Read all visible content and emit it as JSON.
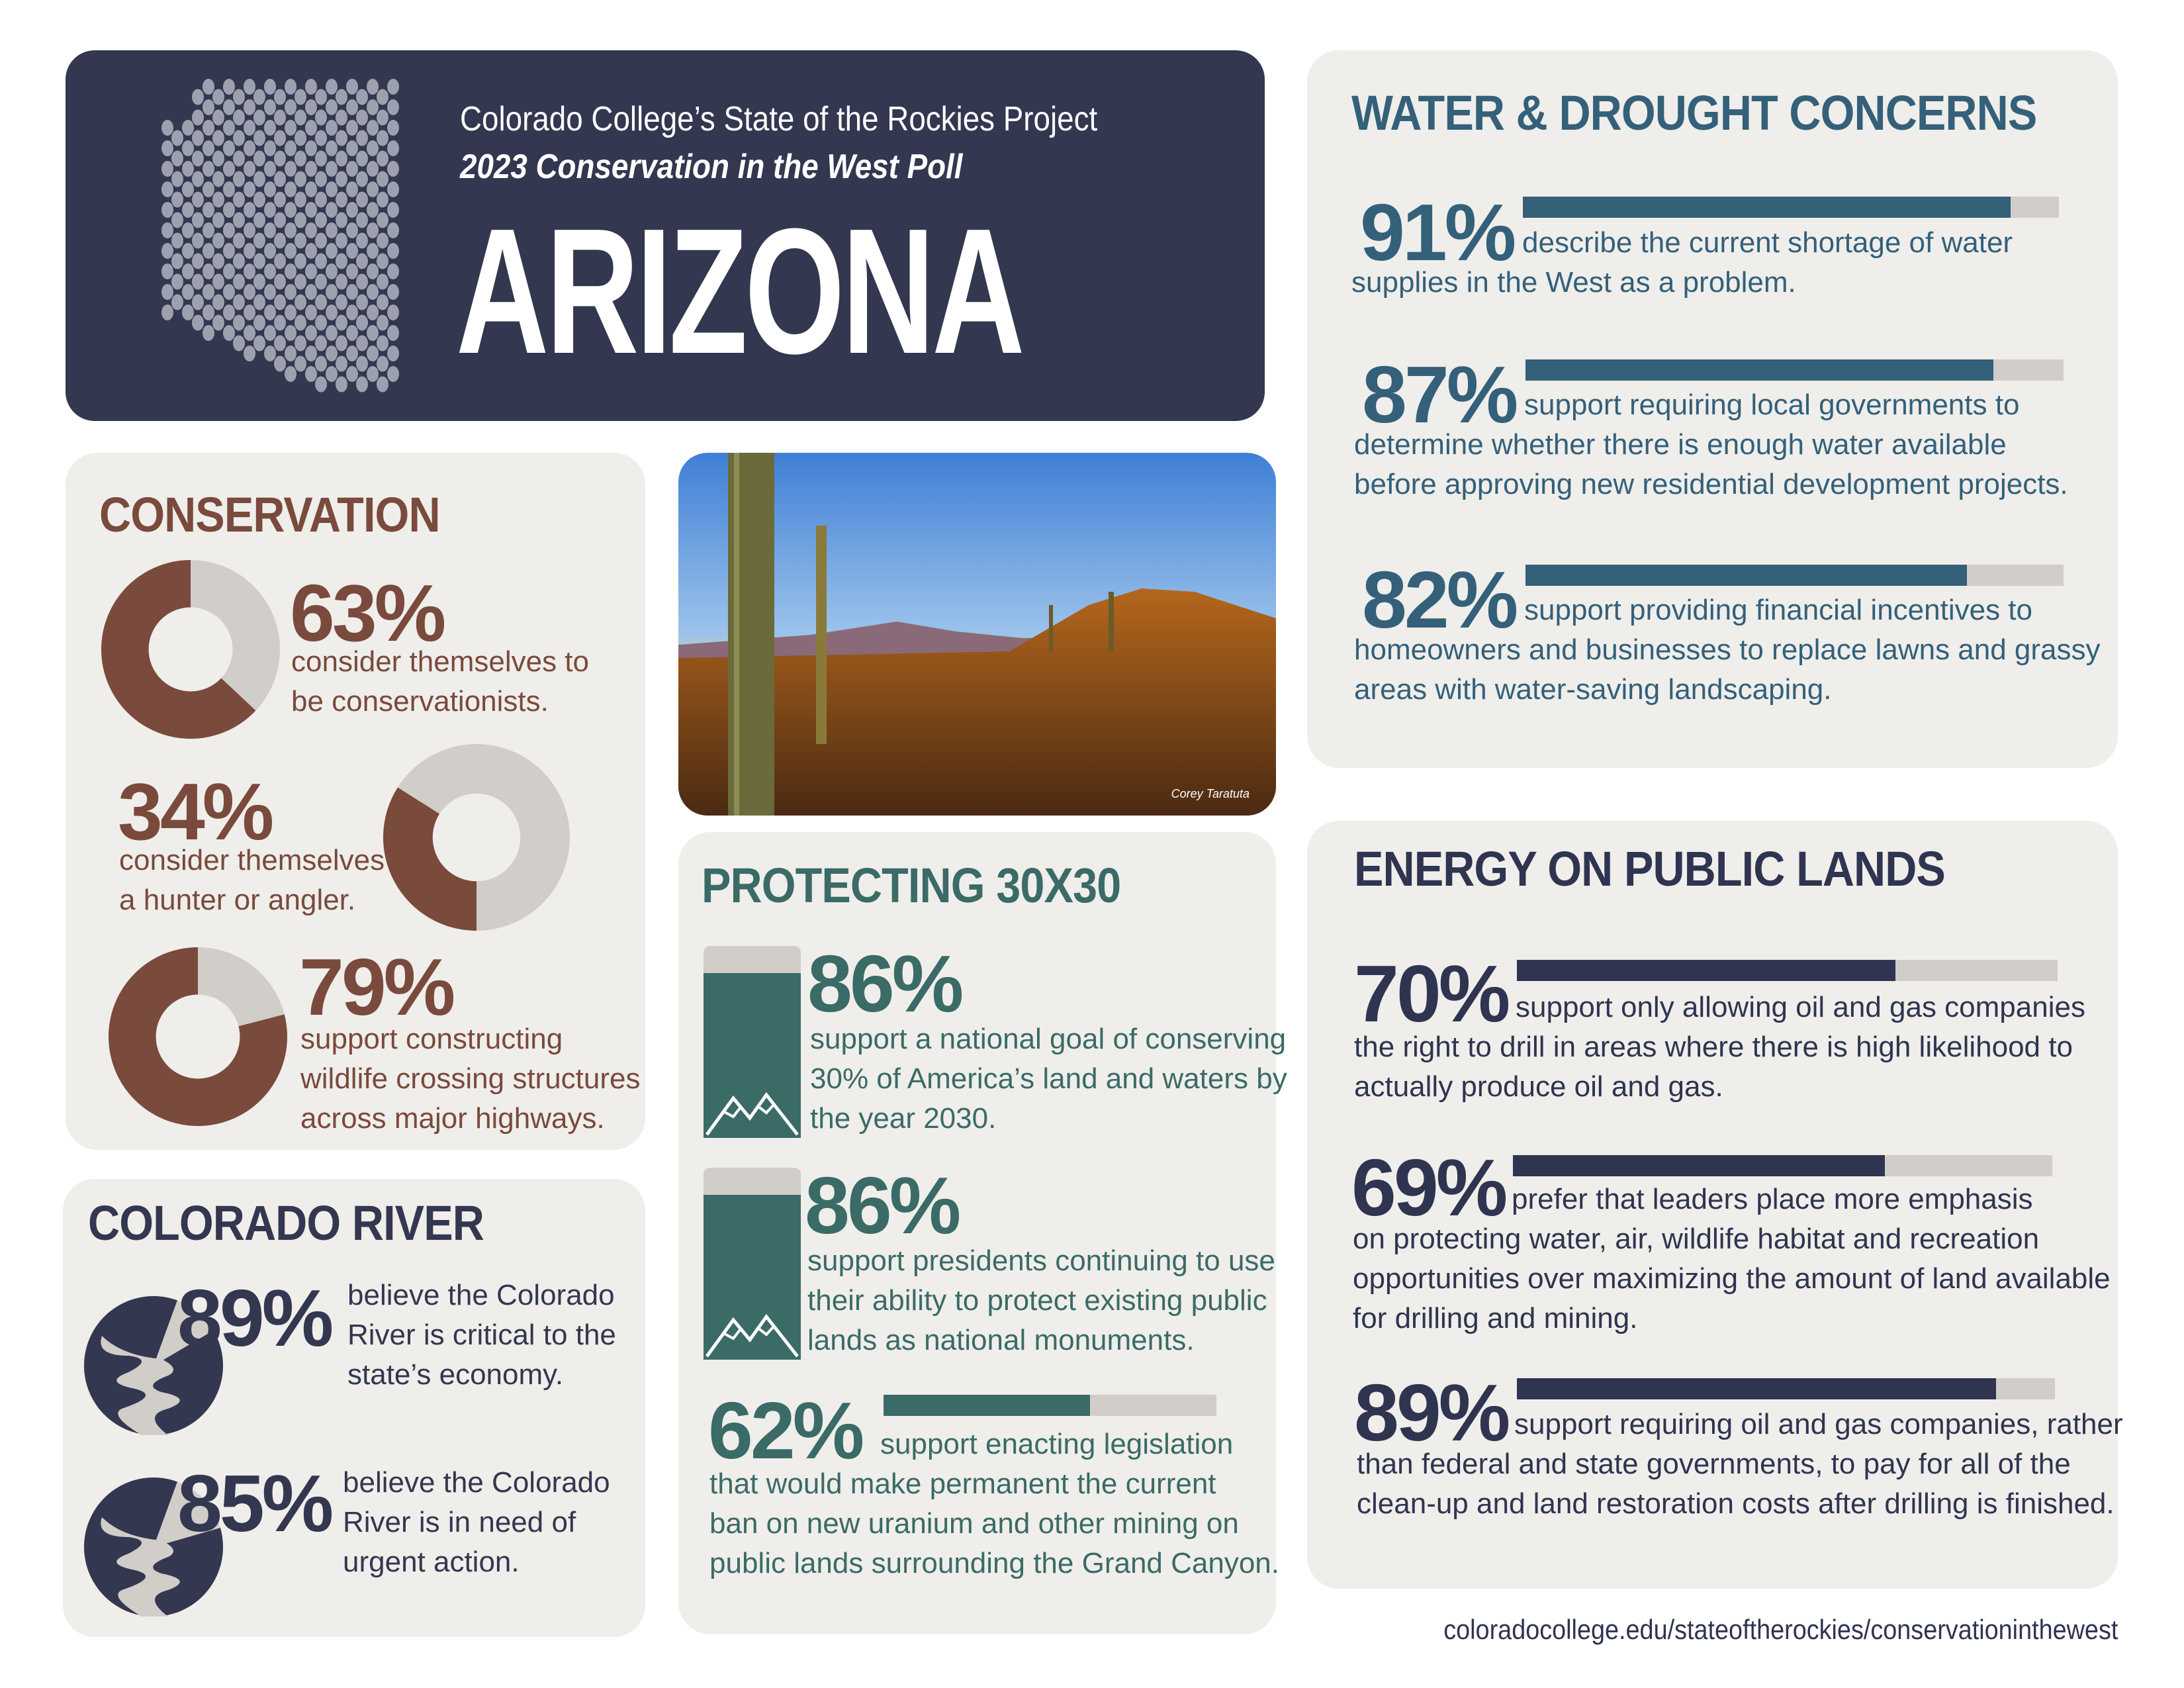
{
  "header": {
    "subtitle": "Colorado College’s State of the Rockies Project",
    "poll": "2023 Conservation in the West Poll",
    "state": "ARIZONA"
  },
  "colors": {
    "navy": "#33374f",
    "conservation": "#7a4a3c",
    "water": "#34607a",
    "protecting": "#3b6b66",
    "energy": "#2f3450",
    "track": "#d1cdc9",
    "panel": "#efeeeb"
  },
  "conservation": {
    "title": "CONSERVATION",
    "items": [
      {
        "value": 63,
        "pct": "63%",
        "lines": [
          "consider themselves to",
          "be conservationists."
        ]
      },
      {
        "value": 34,
        "pct": "34%",
        "lines": [
          "consider themselves",
          "a hunter or angler."
        ]
      },
      {
        "value": 79,
        "pct": "79%",
        "lines": [
          "support constructing",
          "wildlife crossing structures",
          "across major highways."
        ]
      }
    ]
  },
  "colorado_river": {
    "title": "COLORADO RIVER",
    "items": [
      {
        "value": 89,
        "pct": "89%",
        "lines": [
          "believe the Colorado",
          "River is critical to the",
          "state’s economy."
        ]
      },
      {
        "value": 85,
        "pct": "85%",
        "lines": [
          "believe the Colorado",
          "River is in need of",
          "urgent action."
        ]
      }
    ]
  },
  "photo": {
    "credit": "Corey Taratuta"
  },
  "protecting": {
    "title": "PROTECTING 30X30",
    "items": [
      {
        "value": 86,
        "pct": "86%",
        "lines": [
          "support a national goal of conserving",
          "30% of America’s land and waters by",
          "the year 2030."
        ]
      },
      {
        "value": 86,
        "pct": "86%",
        "lines": [
          "support presidents continuing to use",
          "their ability to protect existing public",
          "lands as national monuments."
        ]
      },
      {
        "value": 62,
        "pct": "62%",
        "lines": [
          "support enacting legislation",
          "that would make permanent the current",
          "ban on new uranium and other mining on",
          "public lands surrounding the Grand Canyon."
        ]
      }
    ]
  },
  "water": {
    "title": "WATER & DROUGHT CONCERNS",
    "items": [
      {
        "value": 91,
        "pct": "91%",
        "lines": [
          "describe the current shortage of water",
          "supplies in the West as a problem."
        ]
      },
      {
        "value": 87,
        "pct": "87%",
        "lines": [
          "support requiring local governments to",
          "determine whether there is enough water available",
          "before approving new residential development projects."
        ]
      },
      {
        "value": 82,
        "pct": "82%",
        "lines": [
          "support providing financial incentives to",
          "homeowners and businesses to replace lawns and grassy",
          "areas with water-saving landscaping."
        ]
      }
    ]
  },
  "energy": {
    "title": "ENERGY ON PUBLIC LANDS",
    "items": [
      {
        "value": 70,
        "pct": "70%",
        "lines": [
          "support only allowing oil and gas companies",
          "the right to drill in areas where there is high likelihood to",
          "actually produce oil and gas."
        ]
      },
      {
        "value": 69,
        "pct": "69%",
        "lines": [
          "prefer that leaders place more emphasis",
          "on protecting water, air, wildlife habitat and recreation",
          "opportunities over maximizing the amount of land available",
          "for drilling and mining."
        ]
      },
      {
        "value": 89,
        "pct": "89%",
        "lines": [
          "support requiring oil and gas companies, rather",
          "than federal and state governments, to pay for all of the",
          "clean-up and land restoration costs after drilling is finished."
        ]
      }
    ]
  },
  "footer": {
    "url": "coloradocollege.edu/stateoftherockies/conservationinthewest"
  }
}
